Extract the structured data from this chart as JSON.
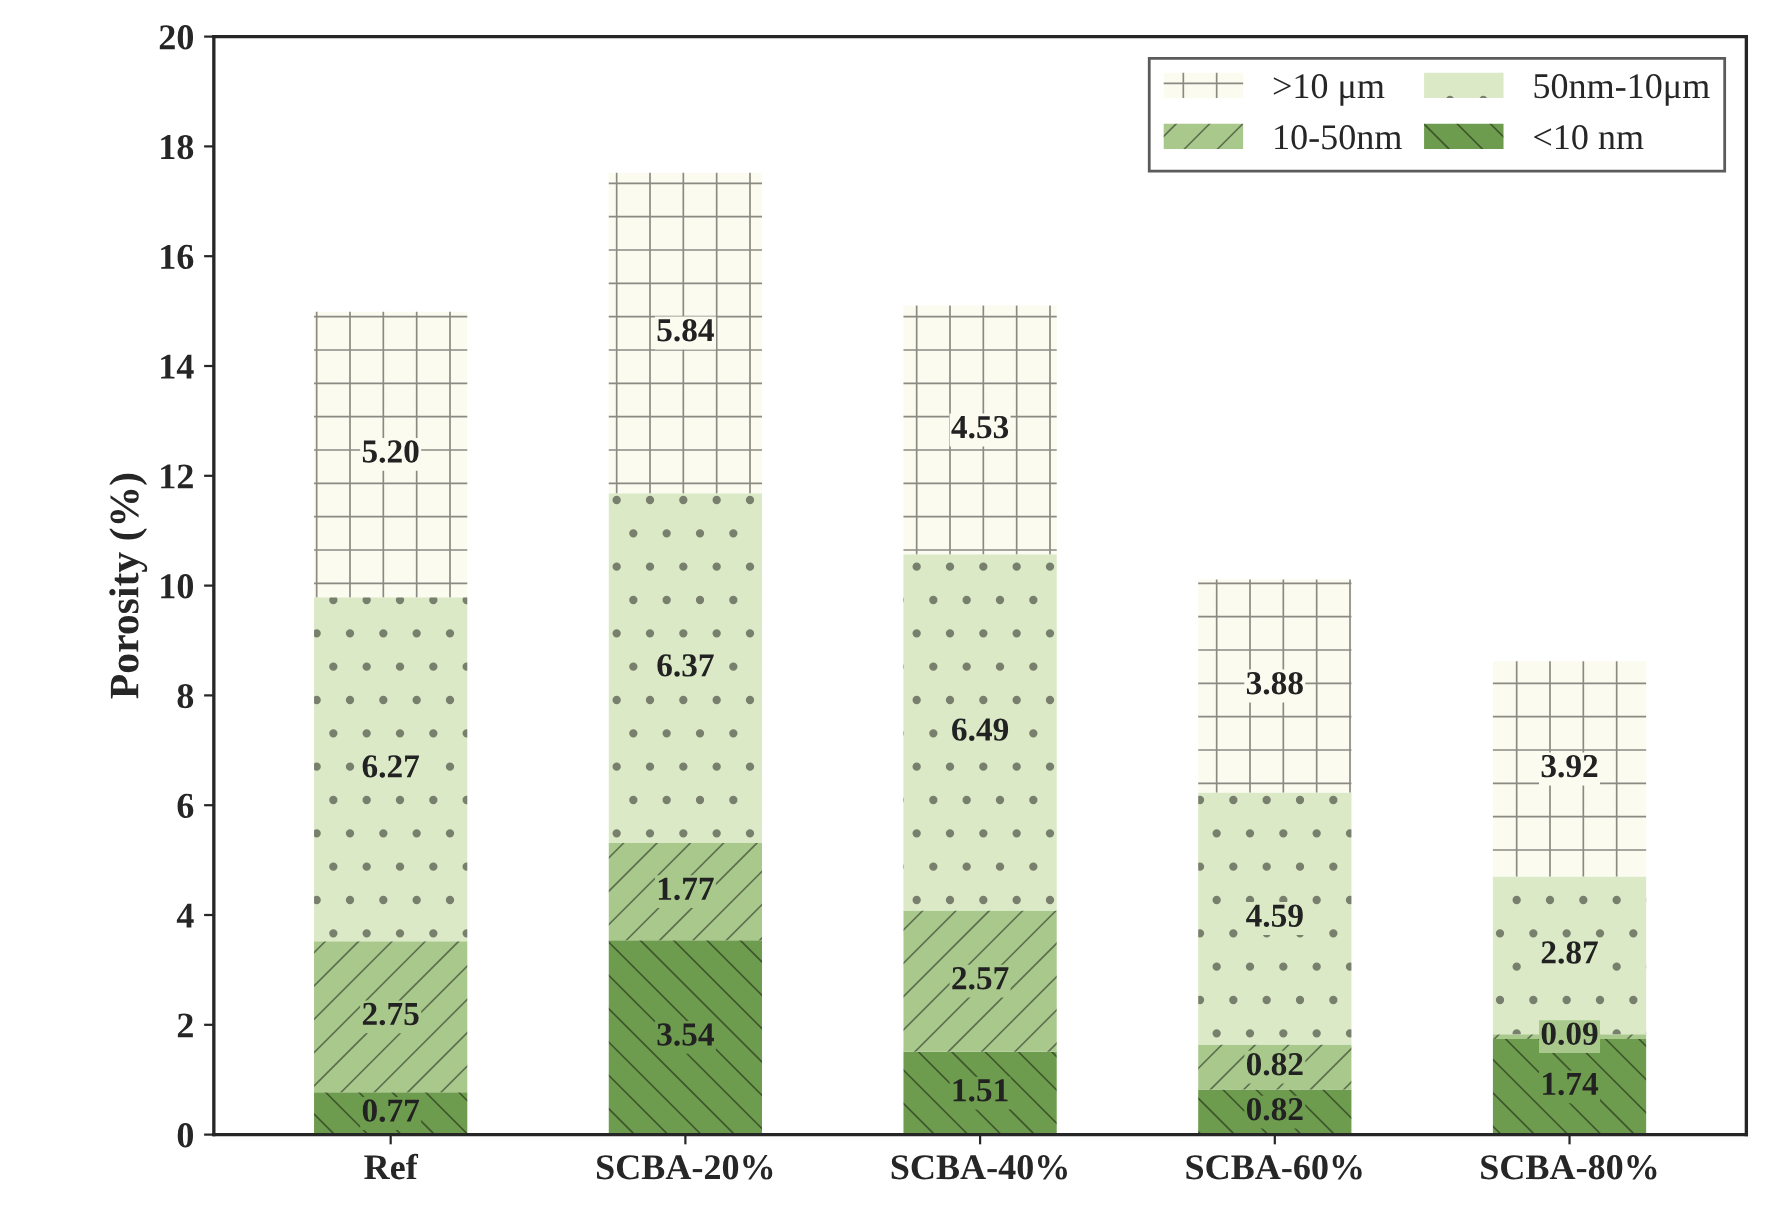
{
  "chart_data": {
    "type": "bar",
    "stacked": true,
    "ylabel": "Porosity (%)",
    "categories": [
      "Ref",
      "SCBA-20%",
      "SCBA-40%",
      "SCBA-60%",
      "SCBA-80%"
    ],
    "series": [
      {
        "name": "<10 nm",
        "color": "#6e9c4e",
        "values": [
          0.77,
          3.54,
          1.51,
          0.82,
          1.74
        ],
        "value_labels": [
          "0.77",
          "3.54",
          "1.51",
          "0.82",
          "1.74"
        ]
      },
      {
        "name": "10-50nm",
        "color": "#a9c98c",
        "values": [
          2.75,
          1.77,
          2.57,
          0.82,
          0.09
        ],
        "value_labels": [
          "2.75",
          "1.77",
          "2.57",
          "0.82",
          "0.09"
        ]
      },
      {
        "name": "50nm-10μm",
        "color": "#dbe9c6",
        "values": [
          6.27,
          6.37,
          6.49,
          4.59,
          2.87
        ],
        "value_labels": [
          "6.27",
          "6.37",
          "6.49",
          "4.59",
          "2.87"
        ]
      },
      {
        "name": ">10 μm",
        "color": "#fbfbef",
        "values": [
          5.2,
          5.84,
          4.53,
          3.88,
          3.92
        ],
        "value_labels": [
          "5.20",
          "5.84",
          "4.53",
          "3.88",
          "3.92"
        ]
      }
    ],
    "ylim": [
      0,
      20
    ],
    "yticks": [
      0,
      2,
      4,
      6,
      8,
      10,
      12,
      14,
      16,
      18,
      20
    ],
    "grid": false,
    "legend": "top right"
  }
}
